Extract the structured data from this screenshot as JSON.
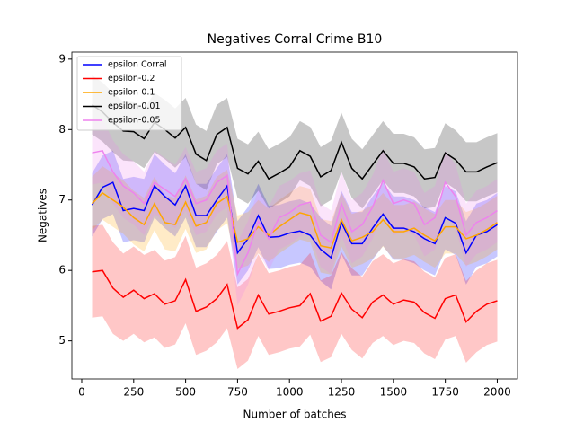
{
  "chart_data": {
    "type": "line",
    "title": "Negatives Corral Crime B10",
    "xlabel": "Number of batches",
    "ylabel": "Negatives",
    "x": [
      50,
      100,
      150,
      200,
      250,
      300,
      350,
      400,
      450,
      500,
      550,
      600,
      650,
      700,
      750,
      800,
      850,
      900,
      950,
      1000,
      1050,
      1100,
      1150,
      1200,
      1250,
      1300,
      1350,
      1400,
      1450,
      1500,
      1550,
      1600,
      1650,
      1700,
      1750,
      1800,
      1850,
      1900,
      1950,
      2000
    ],
    "xlim": [
      -47.5,
      2097.5
    ],
    "xticks": [
      0,
      250,
      500,
      750,
      1000,
      1250,
      1500,
      1750,
      2000
    ],
    "ylim": [
      4.46,
      9.1
    ],
    "yticks": [
      5,
      6,
      7,
      8,
      9
    ],
    "legend": "upper left",
    "band_opacity": 0.22,
    "series": [
      {
        "name": "epsilon Corral",
        "color": "#0000ff",
        "values": [
          6.93,
          7.18,
          7.25,
          6.85,
          6.88,
          6.85,
          7.2,
          7.05,
          6.93,
          7.2,
          6.78,
          6.78,
          7.0,
          7.2,
          6.25,
          6.45,
          6.78,
          6.47,
          6.48,
          6.53,
          6.56,
          6.5,
          6.3,
          6.18,
          6.68,
          6.38,
          6.38,
          6.6,
          6.8,
          6.6,
          6.6,
          6.55,
          6.45,
          6.38,
          6.75,
          6.67,
          6.25,
          6.5,
          6.55,
          6.65
        ],
        "errors": [
          0.45,
          0.45,
          0.45,
          0.45,
          0.45,
          0.45,
          0.45,
          0.45,
          0.45,
          0.45,
          0.45,
          0.45,
          0.45,
          0.45,
          0.45,
          0.45,
          0.45,
          0.45,
          0.45,
          0.45,
          0.45,
          0.45,
          0.45,
          0.45,
          0.45,
          0.45,
          0.45,
          0.45,
          0.45,
          0.45,
          0.45,
          0.45,
          0.45,
          0.45,
          0.45,
          0.45,
          0.45,
          0.45,
          0.45,
          0.45
        ]
      },
      {
        "name": "epsilon-0.2",
        "color": "#ff0000",
        "values": [
          5.98,
          6.0,
          5.75,
          5.62,
          5.72,
          5.6,
          5.67,
          5.52,
          5.57,
          5.87,
          5.42,
          5.48,
          5.6,
          5.8,
          5.18,
          5.3,
          5.65,
          5.38,
          5.42,
          5.47,
          5.5,
          5.67,
          5.28,
          5.35,
          5.68,
          5.45,
          5.33,
          5.55,
          5.65,
          5.52,
          5.58,
          5.55,
          5.4,
          5.32,
          5.6,
          5.65,
          5.27,
          5.42,
          5.52,
          5.57
        ],
        "errors": [
          0.65,
          0.65,
          0.65,
          0.62,
          0.62,
          0.62,
          0.62,
          0.62,
          0.62,
          0.62,
          0.62,
          0.62,
          0.62,
          0.62,
          0.58,
          0.58,
          0.58,
          0.58,
          0.58,
          0.58,
          0.58,
          0.58,
          0.58,
          0.58,
          0.58,
          0.58,
          0.58,
          0.58,
          0.58,
          0.58,
          0.58,
          0.58,
          0.58,
          0.58,
          0.58,
          0.58,
          0.58,
          0.58,
          0.58,
          0.58
        ]
      },
      {
        "name": "epsilon-0.1",
        "color": "#ffa500",
        "values": [
          6.95,
          7.1,
          7.0,
          6.9,
          6.75,
          6.65,
          6.95,
          6.68,
          6.65,
          6.97,
          6.63,
          6.68,
          6.95,
          7.05,
          6.4,
          6.45,
          6.62,
          6.5,
          6.62,
          6.72,
          6.82,
          6.78,
          6.35,
          6.32,
          6.72,
          6.42,
          6.47,
          6.55,
          6.72,
          6.55,
          6.55,
          6.6,
          6.5,
          6.42,
          6.62,
          6.62,
          6.45,
          6.5,
          6.58,
          6.68
        ],
        "errors": [
          0.38,
          0.38,
          0.38,
          0.38,
          0.38,
          0.38,
          0.38,
          0.38,
          0.38,
          0.38,
          0.38,
          0.38,
          0.38,
          0.38,
          0.38,
          0.38,
          0.38,
          0.38,
          0.38,
          0.38,
          0.38,
          0.38,
          0.38,
          0.38,
          0.38,
          0.38,
          0.38,
          0.38,
          0.38,
          0.38,
          0.38,
          0.38,
          0.38,
          0.38,
          0.38,
          0.38,
          0.38,
          0.38,
          0.38,
          0.38
        ]
      },
      {
        "name": "epsilon-0.01",
        "color": "#000000",
        "values": [
          8.35,
          8.25,
          8.1,
          7.98,
          7.97,
          7.87,
          8.1,
          8.0,
          7.88,
          8.03,
          7.65,
          7.56,
          7.93,
          8.03,
          7.45,
          7.37,
          7.55,
          7.3,
          7.38,
          7.47,
          7.7,
          7.62,
          7.33,
          7.42,
          7.82,
          7.45,
          7.3,
          7.5,
          7.7,
          7.52,
          7.52,
          7.47,
          7.3,
          7.32,
          7.67,
          7.57,
          7.4,
          7.4,
          7.47,
          7.53
        ],
        "errors": [
          0.42,
          0.42,
          0.42,
          0.42,
          0.42,
          0.42,
          0.42,
          0.42,
          0.42,
          0.42,
          0.42,
          0.42,
          0.42,
          0.42,
          0.42,
          0.42,
          0.42,
          0.42,
          0.42,
          0.42,
          0.42,
          0.42,
          0.42,
          0.42,
          0.42,
          0.42,
          0.42,
          0.42,
          0.42,
          0.42,
          0.42,
          0.42,
          0.42,
          0.42,
          0.42,
          0.42,
          0.42,
          0.42,
          0.42,
          0.42
        ]
      },
      {
        "name": "epsilon-0.05",
        "color": "#ee82ee",
        "values": [
          7.67,
          7.7,
          7.4,
          7.2,
          7.1,
          6.95,
          7.25,
          7.15,
          7.05,
          7.3,
          6.95,
          7.0,
          7.25,
          7.35,
          5.95,
          6.25,
          6.7,
          6.45,
          6.75,
          6.82,
          6.93,
          6.97,
          6.5,
          6.4,
          6.95,
          6.55,
          6.65,
          6.9,
          7.28,
          6.95,
          7.0,
          6.95,
          6.65,
          6.75,
          7.25,
          7.05,
          6.5,
          6.68,
          6.75,
          6.85
        ],
        "errors": [
          0.45,
          0.45,
          0.45,
          0.45,
          0.45,
          0.45,
          0.45,
          0.45,
          0.45,
          0.45,
          0.45,
          0.45,
          0.45,
          0.45,
          0.45,
          0.45,
          0.45,
          0.45,
          0.45,
          0.45,
          0.45,
          0.45,
          0.45,
          0.45,
          0.45,
          0.45,
          0.45,
          0.45,
          0.45,
          0.45,
          0.45,
          0.45,
          0.45,
          0.45,
          0.45,
          0.45,
          0.45,
          0.45,
          0.45,
          0.45
        ]
      }
    ]
  }
}
